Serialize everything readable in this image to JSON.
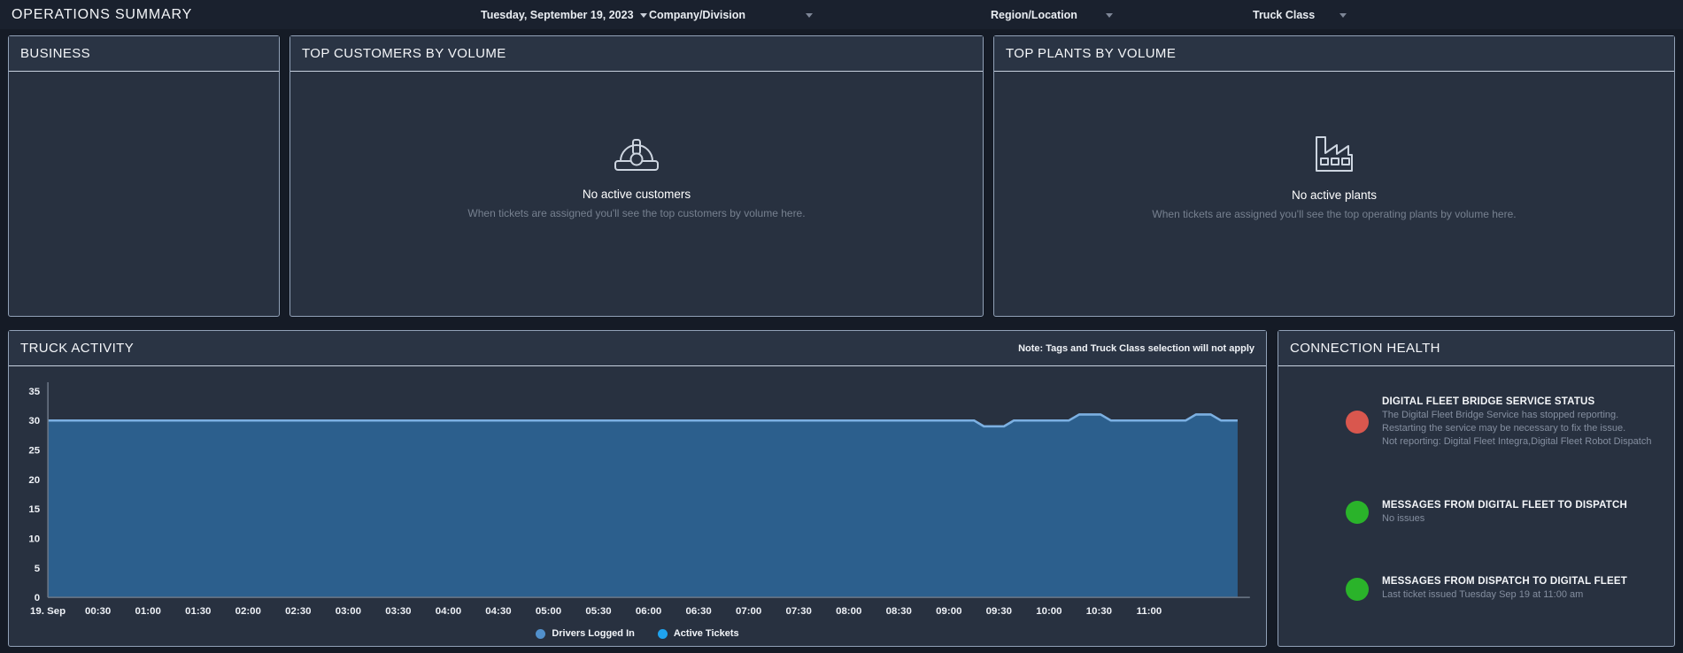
{
  "top_bar": {
    "title": "OPERATIONS SUMMARY",
    "date_label": "Tuesday, September 19, 2023",
    "filters": [
      {
        "label": "Company/Division"
      },
      {
        "label": "Region/Location"
      },
      {
        "label": "Truck Class"
      }
    ]
  },
  "panels": {
    "business": {
      "title": "BUSINESS"
    },
    "top_customers": {
      "title": "TOP CUSTOMERS BY VOLUME",
      "icon": "hard-hat-icon",
      "empty_title": "No active customers",
      "empty_message": "When tickets are assigned you'll see the top customers by volume here."
    },
    "top_plants": {
      "title": "TOP PLANTS BY VOLUME",
      "icon": "factory-icon",
      "empty_title": "No active plants",
      "empty_message": "When tickets are assigned you'll see the top operating plants by volume here."
    },
    "truck_activity": {
      "title": "TRUCK ACTIVITY",
      "note": "Note: Tags and Truck Class selection will not apply"
    },
    "connection_health": {
      "title": "CONNECTION HEALTH",
      "items": [
        {
          "status": "error",
          "color": "#d9574e",
          "heading": "DIGITAL FLEET BRIDGE SERVICE STATUS",
          "lines": [
            "The Digital Fleet Bridge Service has stopped reporting. Restarting the service may be necessary to fix the issue.",
            "Not reporting: Digital Fleet Integra,Digital Fleet Robot Dispatch"
          ]
        },
        {
          "status": "ok",
          "color": "#2ab32a",
          "heading": "MESSAGES FROM DIGITAL FLEET TO DISPATCH",
          "lines": [
            "No issues"
          ]
        },
        {
          "status": "ok",
          "color": "#2ab32a",
          "heading": "MESSAGES FROM DISPATCH TO DIGITAL FLEET",
          "lines": [
            "Last ticket issued Tuesday Sep 19 at 11:00 am"
          ]
        }
      ]
    }
  },
  "chart_data": {
    "type": "area",
    "title": "",
    "xlabel": "",
    "ylabel": "",
    "ylim": [
      0,
      35
    ],
    "y_ticks": [
      0,
      5,
      10,
      15,
      20,
      25,
      30,
      35
    ],
    "x_ticks": [
      "19. Sep",
      "00:30",
      "01:00",
      "01:30",
      "02:00",
      "02:30",
      "03:00",
      "03:30",
      "04:00",
      "04:30",
      "05:00",
      "05:30",
      "06:00",
      "06:30",
      "07:00",
      "07:30",
      "08:00",
      "08:30",
      "09:00",
      "09:30",
      "10:00",
      "10:30",
      "11:00"
    ],
    "x_tick_interval_minutes": 30,
    "x_total_minutes": 713,
    "grid": false,
    "legend_position": "bottom-center",
    "axis_color": "#6d7887",
    "label_color": "#eef1f6",
    "line_color": "#7cb0e2",
    "fill_color": "#2c5f8d",
    "series": [
      {
        "name": "Drivers Logged In",
        "marker_color": "#5190cc",
        "points": [
          [
            "00:00",
            30
          ],
          [
            "09:15",
            30
          ],
          [
            "09:21",
            29
          ],
          [
            "09:33",
            29
          ],
          [
            "09:39",
            30
          ],
          [
            "10:12",
            30
          ],
          [
            "10:18",
            31
          ],
          [
            "10:31",
            31
          ],
          [
            "10:37",
            30
          ],
          [
            "11:22",
            30
          ],
          [
            "11:28",
            31
          ],
          [
            "11:37",
            31
          ],
          [
            "11:43",
            30
          ],
          [
            "11:53",
            30
          ]
        ]
      },
      {
        "name": "Active Tickets",
        "marker_color": "#1fa3ee",
        "points": [
          [
            "00:00",
            30
          ],
          [
            "09:15",
            30
          ],
          [
            "09:21",
            29
          ],
          [
            "09:33",
            29
          ],
          [
            "09:39",
            30
          ],
          [
            "10:12",
            30
          ],
          [
            "10:18",
            31
          ],
          [
            "10:31",
            31
          ],
          [
            "10:37",
            30
          ],
          [
            "11:22",
            30
          ],
          [
            "11:28",
            31
          ],
          [
            "11:37",
            31
          ],
          [
            "11:43",
            30
          ],
          [
            "11:53",
            30
          ]
        ]
      }
    ]
  }
}
